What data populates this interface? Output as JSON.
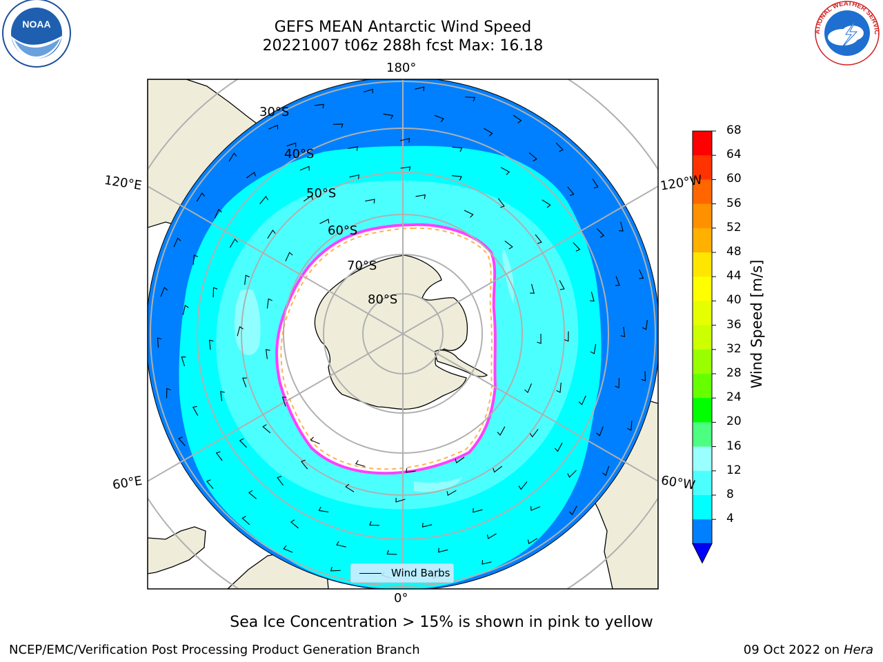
{
  "title": {
    "line1": "GEFS MEAN Antarctic Wind Speed",
    "line2": "20221007 t06z 288h fcst   Max: 16.18"
  },
  "logos": {
    "noaa_text": "NOAA",
    "nws_text": "NATIONAL WEATHER SERVICE"
  },
  "map": {
    "projection": "south-polar-stereographic",
    "longitude_labels": {
      "top": "180°",
      "bottom": "0°",
      "left_upper": "120°E",
      "right_upper": "120°W",
      "left_lower": "60°E",
      "right_lower": "60°W"
    },
    "latitude_labels": [
      "30°S",
      "40°S",
      "50°S",
      "60°S",
      "70°S",
      "80°S"
    ],
    "legend_label": "Wind Barbs",
    "colors": {
      "ocean_4_8": "#0080ff",
      "ocean_8_12": "#00ffff",
      "ocean_12_16": "#4cffff",
      "ocean_16_20": "#99ffff",
      "land": "#efedda",
      "ice_edge_pink": "#ff40ff",
      "ice_edge_yellow": "#ffb24c",
      "grid": "#b0b0b0"
    }
  },
  "colorbar": {
    "label": "Wind Speed [m/s]",
    "ticks": [
      "68",
      "64",
      "60",
      "56",
      "52",
      "48",
      "44",
      "40",
      "36",
      "32",
      "28",
      "24",
      "20",
      "16",
      "12",
      "8",
      "4"
    ],
    "colors_top_to_bottom": [
      "#ff0000",
      "#ff3300",
      "#ff6600",
      "#ff9000",
      "#ffb000",
      "#ffe600",
      "#ffff00",
      "#e6ff00",
      "#ccff00",
      "#99ff00",
      "#66ff00",
      "#00ff00",
      "#4cff80",
      "#99ffff",
      "#4cffff",
      "#00ffff",
      "#0080ff"
    ],
    "extend_color": "#0000ff"
  },
  "caption": "Sea Ice Concentration > 15% is shown in pink to yellow",
  "footer": {
    "left": "NCEP/EMC/Verification Post Processing Product Generation Branch",
    "right_prefix": "09 Oct 2022 on ",
    "right_machine": "Hera"
  }
}
